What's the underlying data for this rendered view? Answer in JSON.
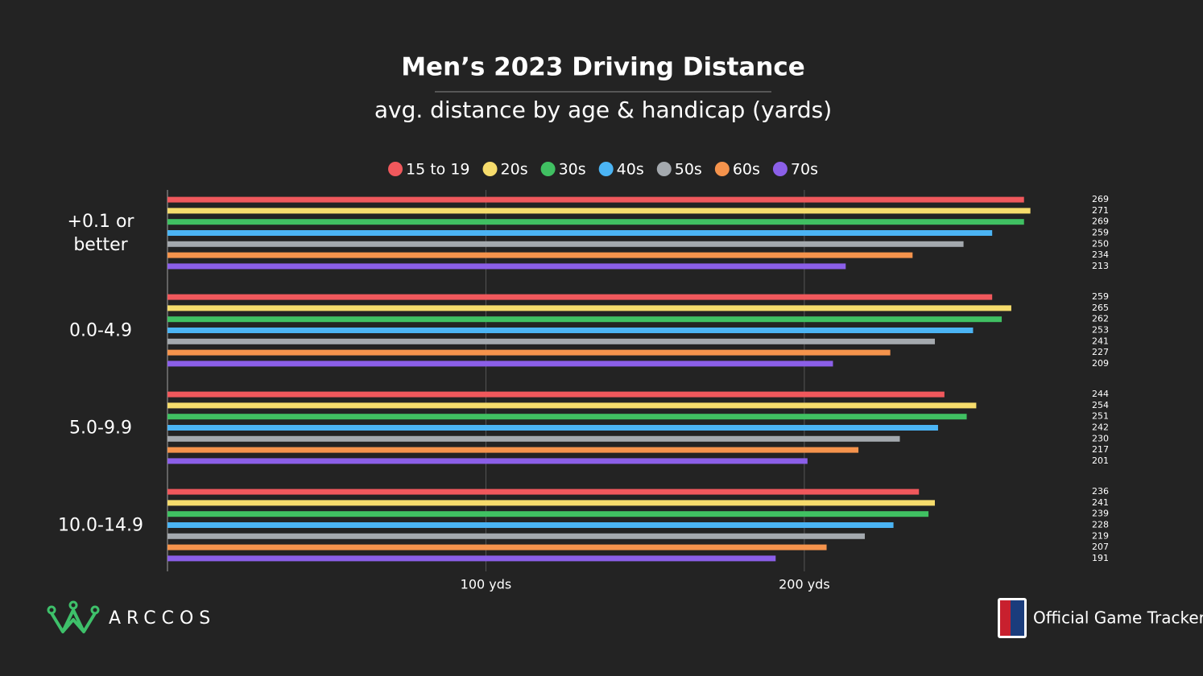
{
  "chart_data": {
    "type": "bar",
    "orientation": "horizontal",
    "title": "Men’s 2023 Driving Distance",
    "subtitle": "avg. distance by age & handicap (yards)",
    "categories": [
      "+0.1 or better",
      "0.0-4.9",
      "5.0-9.9",
      "10.0-14.9"
    ],
    "series": [
      {
        "name": "15 to 19",
        "color": "#f0585c",
        "values": [
          269,
          259,
          244,
          236
        ]
      },
      {
        "name": "20s",
        "color": "#f6dc6c",
        "values": [
          271,
          265,
          254,
          241
        ]
      },
      {
        "name": "30s",
        "color": "#40c062",
        "values": [
          269,
          262,
          251,
          239
        ]
      },
      {
        "name": "40s",
        "color": "#4bb4f4",
        "values": [
          259,
          253,
          242,
          228
        ]
      },
      {
        "name": "50s",
        "color": "#a4a9ae",
        "values": [
          250,
          241,
          230,
          219
        ]
      },
      {
        "name": "60s",
        "color": "#f5934c",
        "values": [
          234,
          227,
          217,
          207
        ]
      },
      {
        "name": "70s",
        "color": "#8b5fe8",
        "values": [
          213,
          209,
          201,
          191
        ]
      }
    ],
    "xlim": [
      0,
      285
    ],
    "xticks": [
      {
        "value": 100,
        "label": "100 yds"
      },
      {
        "value": 200,
        "label": "200 yds"
      }
    ],
    "grid": true,
    "legend": "top"
  },
  "branding": {
    "left": "ARCCOS",
    "right": "Official Game Tracker"
  }
}
